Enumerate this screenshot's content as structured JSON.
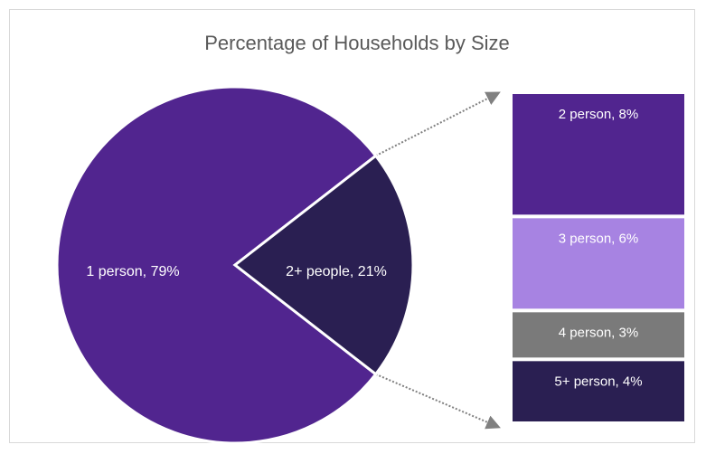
{
  "chart_data": {
    "type": "pie",
    "subtype": "bar-of-pie",
    "title": "Percentage of Households by Size",
    "pie": {
      "slices": [
        {
          "label": "1 person",
          "value": 79,
          "color": "#51258f"
        },
        {
          "label": "2+ people",
          "value": 21,
          "color": "#2a1f52"
        }
      ]
    },
    "breakout": {
      "of": "2+ people",
      "segments": [
        {
          "label": "2 person",
          "value": 8,
          "color": "#51258f"
        },
        {
          "label": "3 person",
          "value": 6,
          "color": "#a783e2"
        },
        {
          "label": "4 person",
          "value": 3,
          "color": "#7a7a7a"
        },
        {
          "label": "5+ person",
          "value": 4,
          "color": "#2a1f52"
        }
      ]
    },
    "connector_color": "#808080",
    "legend": "none"
  }
}
